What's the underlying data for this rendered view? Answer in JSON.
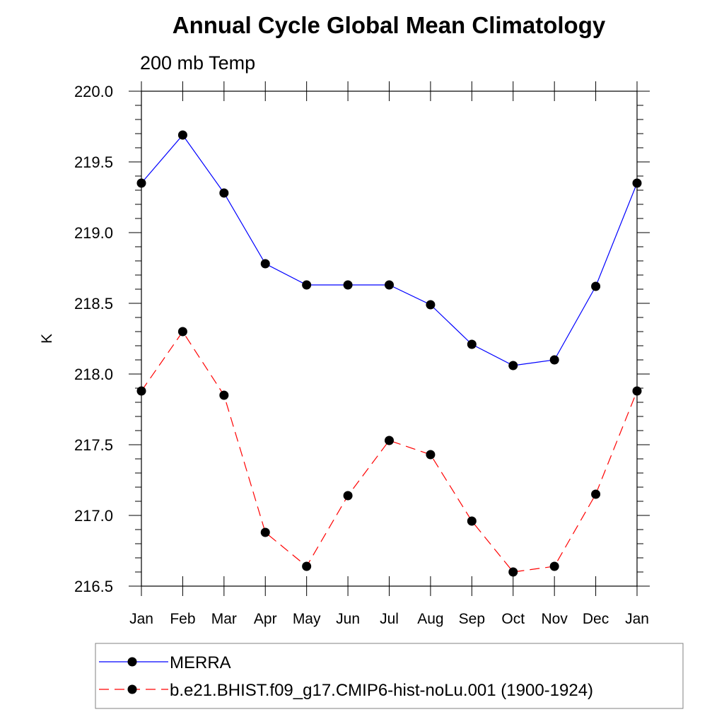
{
  "chart_data": {
    "type": "line",
    "title": "Annual Cycle Global Mean Climatology",
    "subtitle": "200 mb Temp",
    "ylabel": "K",
    "xlabel": "",
    "categories": [
      "Jan",
      "Feb",
      "Mar",
      "Apr",
      "May",
      "Jun",
      "Jul",
      "Aug",
      "Sep",
      "Oct",
      "Nov",
      "Dec",
      "Jan"
    ],
    "ylim": [
      216.5,
      220.0
    ],
    "yticks": [
      "216.5",
      "217.0",
      "217.5",
      "218.0",
      "218.5",
      "219.0",
      "219.5",
      "220.0"
    ],
    "grid": false,
    "legend_position": "bottom",
    "series": [
      {
        "name": "MERRA",
        "color": "#0000ff",
        "dash": "solid",
        "values": [
          219.35,
          219.69,
          219.28,
          218.78,
          218.63,
          218.63,
          218.63,
          218.49,
          218.21,
          218.06,
          218.1,
          218.62,
          219.35
        ]
      },
      {
        "name": "b.e21.BHIST.f09_g17.CMIP6-hist-noLu.001 (1900-1924)",
        "color": "#ff0000",
        "dash": "dashed",
        "values": [
          217.88,
          218.3,
          217.85,
          216.88,
          216.64,
          217.14,
          217.53,
          217.43,
          216.96,
          216.6,
          216.64,
          217.15,
          217.88
        ]
      }
    ]
  }
}
